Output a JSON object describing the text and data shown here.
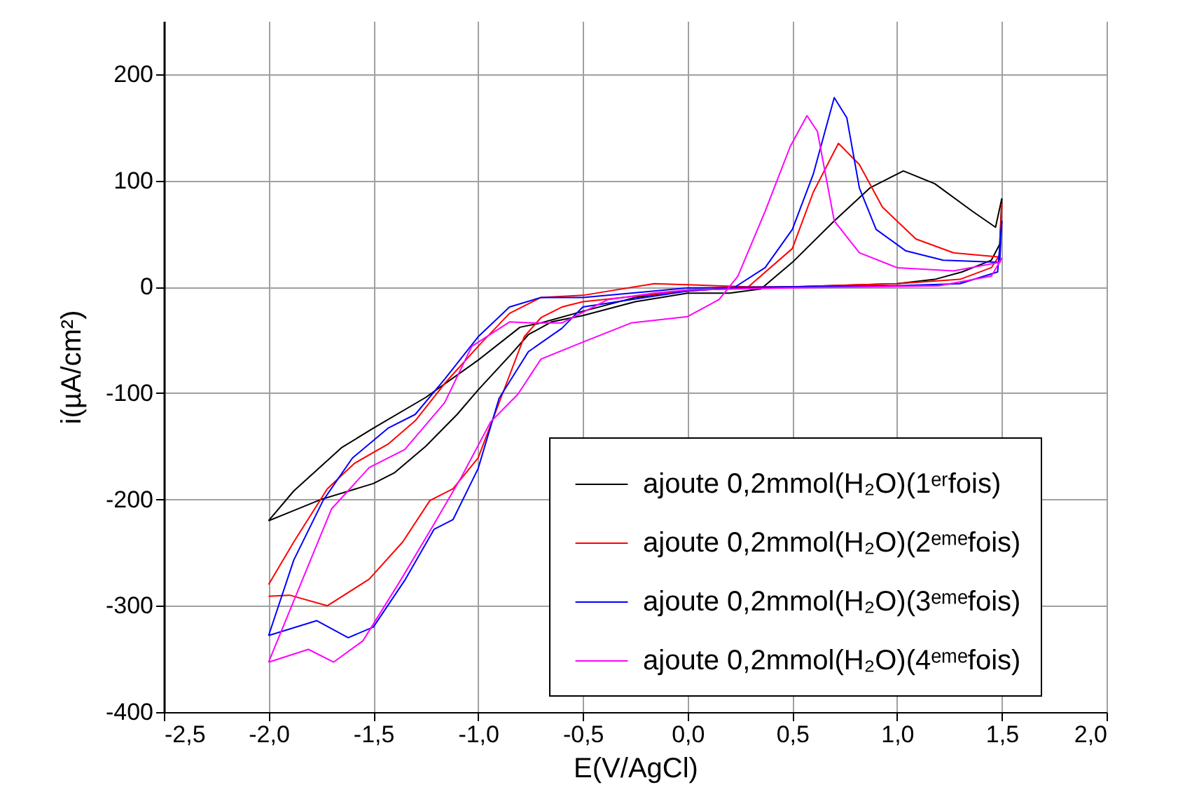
{
  "chart_data": {
    "type": "line",
    "xlabel": "E(V/AgCl)",
    "ylabel": "i(µA/cm²)",
    "xlim": [
      -2.5,
      2.0
    ],
    "xticks": [
      {
        "value": -2.5,
        "label": "-2,5"
      },
      {
        "value": -2.0,
        "label": "-2,0"
      },
      {
        "value": -1.5,
        "label": "-1,5"
      },
      {
        "value": -1.0,
        "label": "-1,0"
      },
      {
        "value": -0.5,
        "label": "-0,5"
      },
      {
        "value": 0,
        "label": "0,0"
      },
      {
        "value": 0.5,
        "label": "0,5"
      },
      {
        "value": 1.0,
        "label": "1,0"
      },
      {
        "value": 1.5,
        "label": "1,5"
      },
      {
        "value": 2.0,
        "label": "2,0"
      }
    ],
    "ylim": [
      -400,
      250
    ],
    "yticks": [
      -400,
      -300,
      -200,
      -100,
      0,
      100,
      200
    ],
    "grid": true,
    "legend": "bottom right",
    "series": [
      {
        "name": "ajoute 0,2mmol(H₂O)(1ᵉʳfois)",
        "color": "#000000",
        "x": [
          -2.0,
          -1.9,
          -1.75,
          -1.6,
          -1.5,
          -1.4,
          -1.25,
          -1.1,
          -1.0,
          -0.85,
          -0.76,
          -0.65,
          -0.5,
          -0.25,
          0,
          0.2,
          0.35,
          0.5,
          0.7,
          0.87,
          1.03,
          1.18,
          1.36,
          1.47,
          1.5
        ],
        "values": [
          -220,
          -212,
          -200,
          -191,
          -185,
          -175,
          -150,
          -120,
          -97,
          -65,
          -45,
          -33,
          -27,
          -14,
          -6,
          -6,
          -2,
          23,
          62,
          93,
          109,
          97,
          71,
          56,
          83
        ]
      },
      {
        "color": "#000000",
        "x": [
          1.5,
          1.49,
          1.45,
          1.31,
          1.18,
          1.0,
          0.5,
          0,
          -0.25,
          -0.5,
          -0.7,
          -0.8,
          -1.0,
          -1.25,
          -1.5,
          -1.65,
          -1.88,
          -2.0
        ],
        "values": [
          83,
          40,
          25,
          14,
          7,
          3,
          0,
          -3,
          -10,
          -23,
          -34,
          -38,
          -69,
          -104,
          -133,
          -151,
          -192,
          -220
        ]
      },
      {
        "name": "ajoute 0,2mmol(H₂O)(2ᵉᵐᵉfois)",
        "color": "#ff0000",
        "x": [
          -2.0,
          -1.9,
          -1.72,
          -1.52,
          -1.36,
          -1.23,
          -1.12,
          -1.0,
          -0.89,
          -0.78,
          -0.7,
          -0.6,
          -0.5,
          -0.16,
          0,
          0.29,
          0.5,
          0.6,
          0.72,
          0.82,
          0.93,
          1.09,
          1.27,
          1.49,
          1.5
        ],
        "values": [
          -291,
          -290,
          -300,
          -275,
          -240,
          -201,
          -190,
          -161,
          -104,
          -47,
          -29,
          -19,
          -14,
          -7,
          -4,
          0,
          36,
          89,
          135,
          115,
          75,
          45,
          32,
          28,
          78
        ]
      },
      {
        "color": "#ff0000",
        "x": [
          1.5,
          1.49,
          1.45,
          1.3,
          1.0,
          0.5,
          0.29,
          0,
          -0.16,
          -0.5,
          -0.7,
          -0.85,
          -1.0,
          -1.16,
          -1.3,
          -1.43,
          -1.59,
          -1.72,
          -1.88,
          -2.0
        ],
        "values": [
          78,
          30,
          18,
          7,
          3,
          0,
          0,
          2,
          3,
          -8,
          -10,
          -25,
          -56,
          -91,
          -126,
          -148,
          -166,
          -190,
          -240,
          -280
        ]
      },
      {
        "name": "ajoute 0,2mmol(H₂O)(3ᵉᵐᵉfois)",
        "color": "#0000ff",
        "x": [
          -2.0,
          -1.77,
          -1.62,
          -1.5,
          -1.35,
          -1.21,
          -1.12,
          -1.0,
          -0.9,
          -0.76,
          -0.6,
          -0.5,
          -0.27,
          0,
          0.22,
          0.37,
          0.5,
          0.6,
          0.7,
          0.76,
          0.82,
          0.9,
          1.04,
          1.22,
          1.49,
          1.5
        ],
        "values": [
          -328,
          -314,
          -330,
          -320,
          -276,
          -228,
          -219,
          -171,
          -105,
          -61,
          -39,
          -19,
          -12,
          -4,
          -1,
          18,
          54,
          106,
          178,
          159,
          93,
          54,
          34,
          25,
          23,
          62
        ]
      },
      {
        "color": "#0000ff",
        "x": [
          1.5,
          1.48,
          1.3,
          1.0,
          0.5,
          0,
          -0.16,
          -0.5,
          -0.7,
          -0.85,
          -1.0,
          -1.16,
          -1.3,
          -1.43,
          -1.6,
          -1.74,
          -1.88,
          -2.0
        ],
        "values": [
          62,
          14,
          3,
          1,
          0,
          -1,
          -4,
          -10,
          -10,
          -19,
          -47,
          -87,
          -120,
          -133,
          -161,
          -201,
          -257,
          -328
        ]
      },
      {
        "name": "ajoute 0,2mmol(H₂O)(4ᵉᵐᵉfois)",
        "color": "#ff00ff",
        "x": [
          -2.0,
          -1.81,
          -1.69,
          -1.55,
          -1.37,
          -1.21,
          -1.08,
          -0.94,
          -0.81,
          -0.7,
          -0.5,
          -0.27,
          0,
          0.15,
          0.24,
          0.37,
          0.49,
          0.57,
          0.62,
          0.7,
          0.82,
          1.0,
          1.27,
          1.49,
          1.5
        ],
        "values": [
          -353,
          -341,
          -353,
          -333,
          -276,
          -223,
          -179,
          -127,
          -101,
          -68,
          -52,
          -34,
          -28,
          -12,
          10,
          71,
          132,
          161,
          146,
          62,
          32,
          18,
          15,
          23,
          27
        ]
      },
      {
        "color": "#ff00ff",
        "x": [
          1.5,
          1.45,
          1.2,
          0.5,
          0,
          -0.16,
          -0.38,
          -0.6,
          -0.74,
          -0.85,
          -1.03,
          -1.16,
          -1.35,
          -1.52,
          -1.7,
          -1.9,
          -2.0
        ],
        "values": [
          27,
          10,
          1,
          -1,
          -3,
          -6,
          -12,
          -34,
          -34,
          -33,
          -56,
          -109,
          -153,
          -170,
          -209,
          -305,
          -353
        ]
      }
    ]
  }
}
